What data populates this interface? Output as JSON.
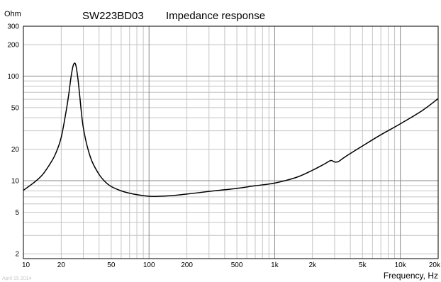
{
  "chart_data": {
    "type": "line",
    "title_model": "SW223BD03",
    "title_text": "Impedance response",
    "ylabel": "Ohm",
    "xlabel": "Frequency, Hz",
    "date": "April 15 2014",
    "x_scale": "log",
    "y_scale": "log",
    "xlim": [
      10,
      20000
    ],
    "ylim": [
      1.8,
      300
    ],
    "grid": true,
    "x_ticks": [
      {
        "value": 10,
        "label": "10"
      },
      {
        "value": 20,
        "label": "20"
      },
      {
        "value": 50,
        "label": "50"
      },
      {
        "value": 100,
        "label": "100"
      },
      {
        "value": 200,
        "label": "200"
      },
      {
        "value": 500,
        "label": "500"
      },
      {
        "value": 1000,
        "label": "1k"
      },
      {
        "value": 2000,
        "label": "2k"
      },
      {
        "value": 5000,
        "label": "5k"
      },
      {
        "value": 10000,
        "label": "10k"
      },
      {
        "value": 20000,
        "label": "20k"
      }
    ],
    "y_ticks": [
      {
        "value": 2,
        "label": "2"
      },
      {
        "value": 5,
        "label": "5"
      },
      {
        "value": 10,
        "label": "10"
      },
      {
        "value": 20,
        "label": "20"
      },
      {
        "value": 50,
        "label": "50"
      },
      {
        "value": 100,
        "label": "100"
      },
      {
        "value": 200,
        "label": "200"
      },
      {
        "value": 300,
        "label": "300"
      }
    ],
    "series": [
      {
        "color": "#000000",
        "x": [
          10,
          12,
          14,
          16,
          18,
          20,
          22,
          23,
          24,
          25,
          26,
          27,
          28,
          29,
          30,
          32,
          35,
          40,
          45,
          50,
          60,
          70,
          80,
          100,
          120,
          150,
          200,
          300,
          400,
          500,
          700,
          1000,
          1500,
          2000,
          2500,
          2800,
          3000,
          3200,
          3500,
          4000,
          5000,
          7000,
          10000,
          15000,
          20000
        ],
        "y": [
          8.1,
          9.5,
          11.2,
          14,
          18,
          26,
          48,
          68,
          100,
          128,
          130,
          100,
          67,
          44,
          32,
          22,
          15.5,
          11.5,
          9.7,
          8.8,
          8.0,
          7.6,
          7.35,
          7.1,
          7.1,
          7.2,
          7.45,
          7.9,
          8.2,
          8.45,
          8.95,
          9.5,
          10.8,
          12.6,
          14.5,
          15.6,
          15.1,
          15.2,
          16.4,
          18.2,
          21.5,
          27.5,
          35,
          47,
          61
        ]
      }
    ]
  }
}
